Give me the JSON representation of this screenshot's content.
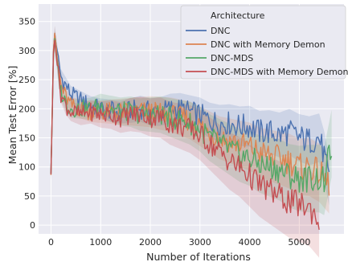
{
  "chart_data": {
    "type": "line",
    "xlabel": "Number of Iterations",
    "ylabel": "Mean Test Error [%]",
    "xlim": [
      -250,
      5900
    ],
    "ylim": [
      -15,
      380
    ],
    "x_ticks": [
      0,
      1000,
      2000,
      3000,
      4000,
      5000
    ],
    "y_ticks": [
      0,
      50,
      100,
      150,
      200,
      250,
      300,
      350
    ],
    "grid": true,
    "background": "#eaeaf2",
    "legend": {
      "title": "Architecture",
      "placement": "top-right"
    },
    "series": [
      {
        "name": "DNC",
        "color": "#4c72b0",
        "x": [
          0,
          60,
          120,
          200,
          300,
          400,
          600,
          800,
          1000,
          1200,
          1400,
          1600,
          1800,
          2000,
          2200,
          2400,
          2600,
          2800,
          3000,
          3200,
          3400,
          3600,
          3800,
          4000,
          4200,
          4400,
          4600,
          4800,
          5000,
          5200,
          5400,
          5500,
          5600
        ],
        "y": [
          90,
          340,
          300,
          255,
          240,
          225,
          215,
          205,
          200,
          197,
          195,
          197,
          200,
          195,
          195,
          200,
          200,
          195,
          190,
          180,
          175,
          175,
          170,
          170,
          160,
          160,
          155,
          160,
          150,
          145,
          150,
          120,
          75
        ]
      },
      {
        "name": "DNC with Memory Demon",
        "color": "#dd8452",
        "x": [
          0,
          60,
          120,
          200,
          300,
          400,
          600,
          800,
          1000,
          1200,
          1400,
          1600,
          1800,
          2000,
          2200,
          2400,
          2600,
          2800,
          3000,
          3200,
          3400,
          3600,
          3800,
          4000,
          4200,
          4400,
          4600,
          4800,
          5000,
          5200,
          5400,
          5500,
          5600
        ],
        "y": [
          90,
          345,
          290,
          240,
          220,
          205,
          200,
          195,
          195,
          195,
          195,
          195,
          195,
          195,
          192,
          190,
          185,
          180,
          170,
          160,
          150,
          145,
          140,
          135,
          125,
          120,
          115,
          110,
          100,
          100,
          90,
          80,
          70
        ]
      },
      {
        "name": "DNC-MDS",
        "color": "#55a868",
        "x": [
          0,
          60,
          120,
          200,
          300,
          400,
          600,
          800,
          1000,
          1200,
          1400,
          1600,
          1800,
          2000,
          2200,
          2400,
          2600,
          2800,
          3000,
          3200,
          3400,
          3600,
          3800,
          4000,
          4200,
          4400,
          4600,
          4800,
          5000,
          5200,
          5400,
          5500,
          5650
        ],
        "y": [
          90,
          330,
          280,
          230,
          210,
          200,
          200,
          200,
          205,
          200,
          195,
          195,
          190,
          190,
          190,
          185,
          180,
          175,
          165,
          150,
          140,
          130,
          120,
          115,
          105,
          100,
          95,
          85,
          80,
          80,
          80,
          75,
          140
        ]
      },
      {
        "name": "DNC-MDS with Memory Demon",
        "color": "#c44e52",
        "x": [
          0,
          60,
          120,
          200,
          300,
          400,
          600,
          800,
          1000,
          1200,
          1400,
          1600,
          1800,
          2000,
          2200,
          2400,
          2600,
          2800,
          3000,
          3200,
          3400,
          3600,
          3800,
          4000,
          4200,
          4400,
          4600,
          4800,
          5000,
          5200,
          5400
        ],
        "y": [
          90,
          335,
          280,
          225,
          205,
          195,
          190,
          195,
          190,
          190,
          185,
          190,
          190,
          185,
          185,
          175,
          170,
          165,
          155,
          140,
          125,
          110,
          100,
          85,
          70,
          60,
          50,
          40,
          35,
          30,
          10
        ]
      }
    ]
  }
}
